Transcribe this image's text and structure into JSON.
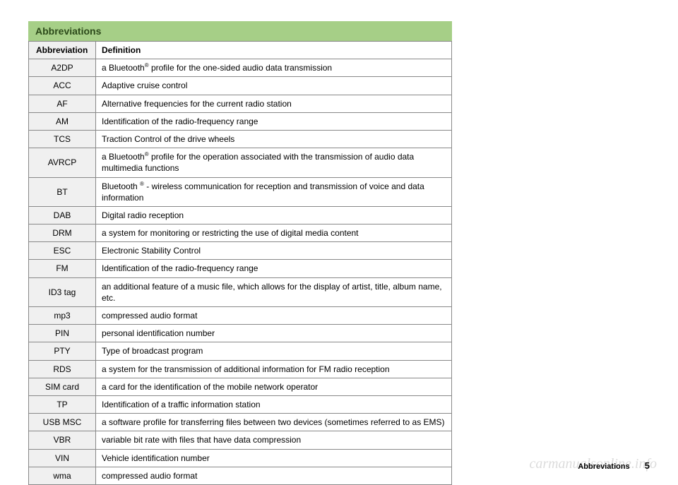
{
  "title": "Abbreviations",
  "title_bg": "#a6cf87",
  "title_color": "#2c4a1a",
  "header": {
    "abbr": "Abbreviation",
    "def": "Definition"
  },
  "rows": [
    {
      "abbr": "A2DP",
      "def": "a Bluetooth® profile for the one-sided audio data transmission"
    },
    {
      "abbr": "ACC",
      "def": "Adaptive cruise control"
    },
    {
      "abbr": "AF",
      "def": "Alternative frequencies for the current radio station"
    },
    {
      "abbr": "AM",
      "def": "Identification of the radio-frequency range"
    },
    {
      "abbr": "TCS",
      "def": "Traction Control of the drive wheels"
    },
    {
      "abbr": "AVRCP",
      "def": "a Bluetooth® profile for the operation associated with the transmission of audio data multimedia functions"
    },
    {
      "abbr": "BT",
      "def": "Bluetooth ® - wireless communication for reception and transmission of voice and data information"
    },
    {
      "abbr": "DAB",
      "def": "Digital radio reception"
    },
    {
      "abbr": "DRM",
      "def": "a system for monitoring or restricting the use of digital media content"
    },
    {
      "abbr": "ESC",
      "def": "Electronic Stability Control"
    },
    {
      "abbr": "FM",
      "def": "Identification of the radio-frequency range"
    },
    {
      "abbr": "ID3 tag",
      "def": "an additional feature of a music file, which allows for the display of artist, title, album name, etc."
    },
    {
      "abbr": "mp3",
      "def": "compressed audio format"
    },
    {
      "abbr": "PIN",
      "def": "personal identification number"
    },
    {
      "abbr": "PTY",
      "def": "Type of broadcast program"
    },
    {
      "abbr": "RDS",
      "def": "a system for the transmission of additional information for FM radio reception"
    },
    {
      "abbr": "SIM card",
      "def": "a card for the identification of the mobile network operator"
    },
    {
      "abbr": "TP",
      "def": "Identification of a traffic information station"
    },
    {
      "abbr": "USB MSC",
      "def": "a software profile for transferring files between two devices (sometimes referred to as EMS)"
    },
    {
      "abbr": "VBR",
      "def": "variable bit rate with files that have data compression"
    },
    {
      "abbr": "VIN",
      "def": "Vehicle identification number"
    },
    {
      "abbr": "wma",
      "def": "compressed audio format"
    }
  ],
  "footer_label": "Abbreviations",
  "footer_num": "5",
  "watermark": "carmanualsonline.info",
  "abbr_cell_bg": "#f0f0f0",
  "border_color": "#888888",
  "text_color": "#222222"
}
